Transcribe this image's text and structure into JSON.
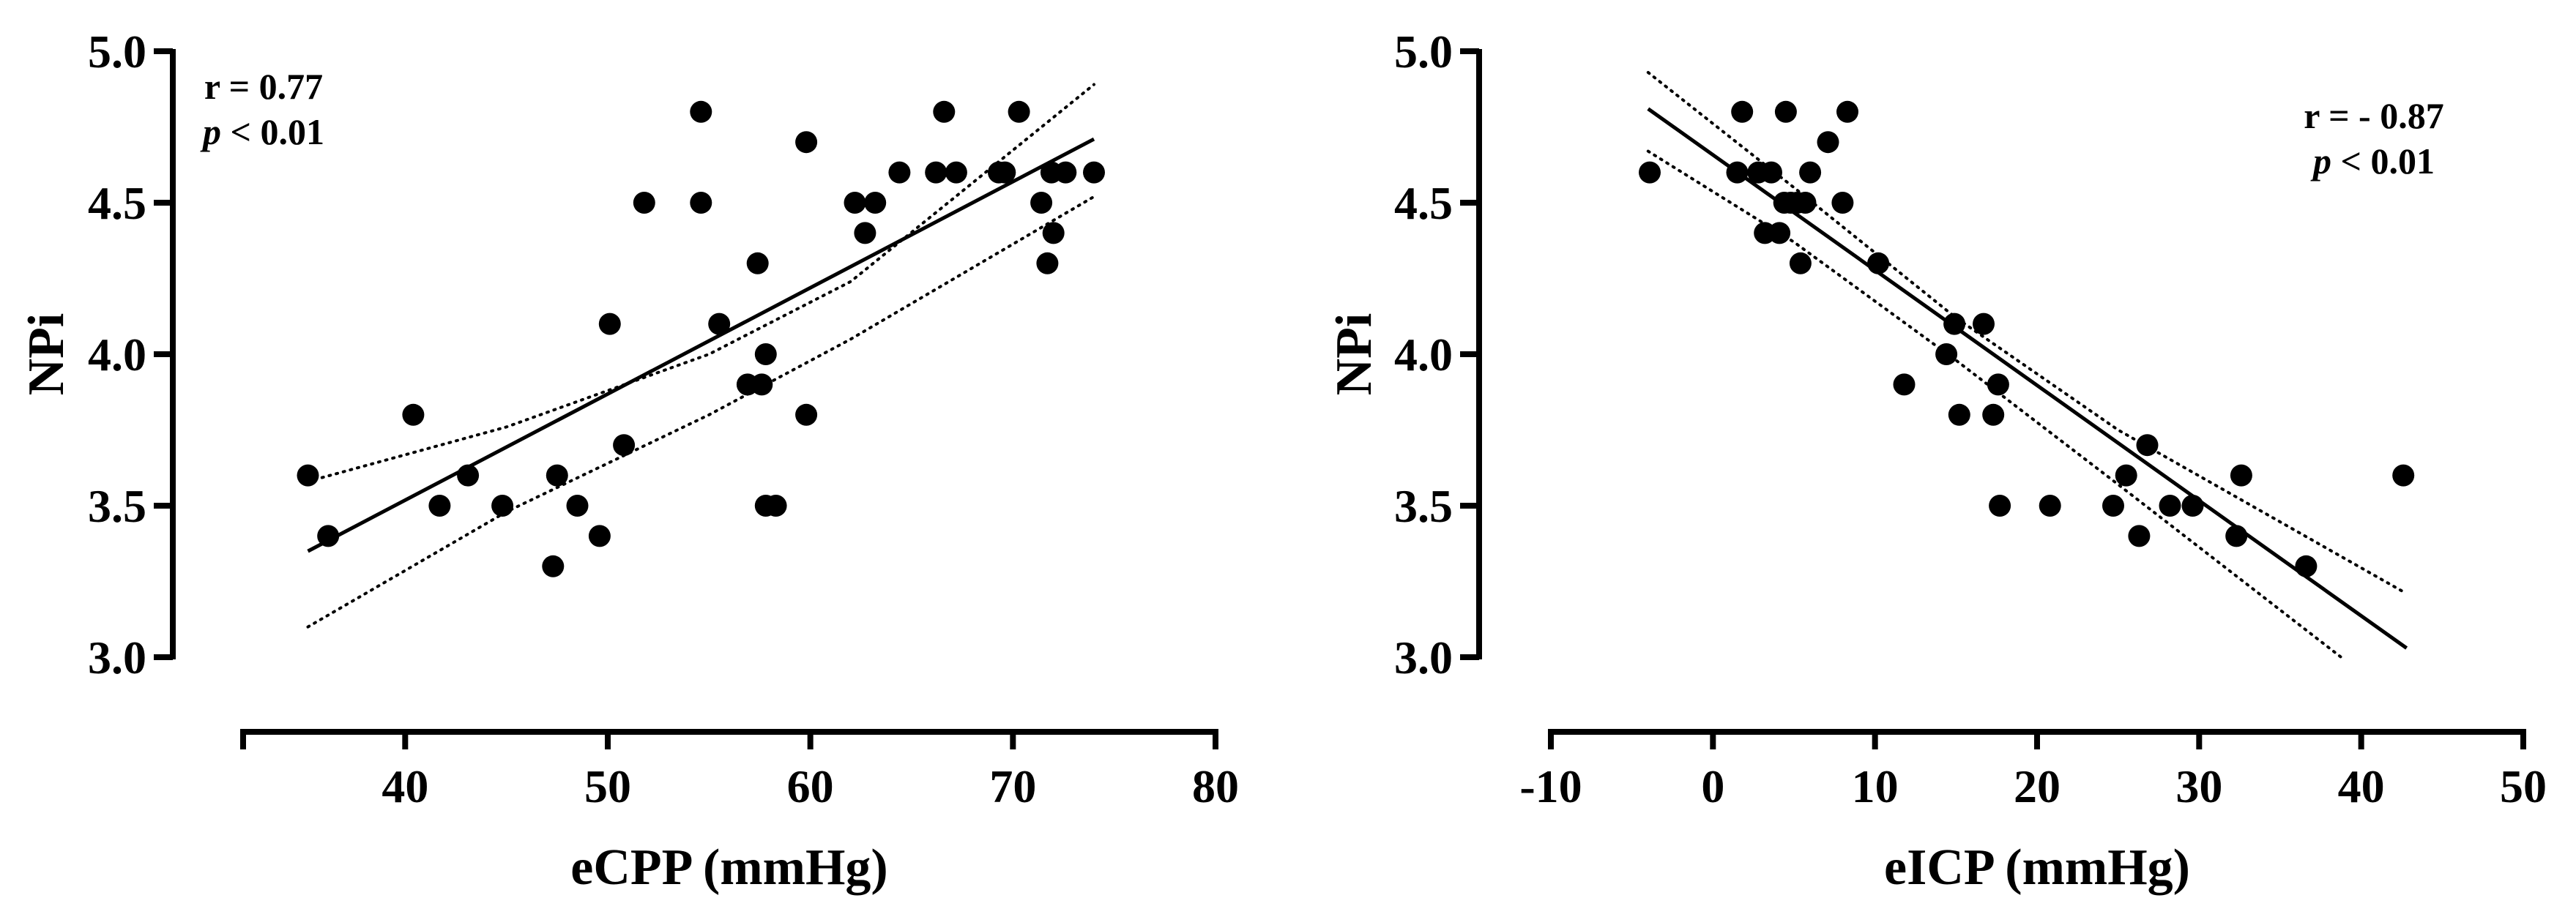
{
  "chart_data": [
    {
      "type": "scatter",
      "title": "",
      "xlabel": "eCPP (mmHg)",
      "ylabel": "NPi",
      "xlim": [
        32,
        80
      ],
      "ylim": [
        3.0,
        5.0
      ],
      "xticks": [
        40,
        50,
        60,
        70,
        80
      ],
      "yticks": [
        3.0,
        3.5,
        4.0,
        4.5,
        5.0
      ],
      "ytick_labels": [
        "3.0",
        "3.5",
        "4.0",
        "4.5",
        "5.0"
      ],
      "xtick_labels": [
        "40",
        "50",
        "60",
        "70",
        "80"
      ],
      "grid": false,
      "legend": "none",
      "annotation": {
        "line1": "r = 0.77",
        "p_symbol": "p",
        "p_rest": " < 0.01",
        "position": "top-left"
      },
      "regression": {
        "x": [
          35.2,
          74.0
        ],
        "y": [
          3.35,
          4.71
        ]
      },
      "ci_upper": {
        "x": [
          35.2,
          45,
          55,
          62,
          74.0
        ],
        "y": [
          3.58,
          3.76,
          4.0,
          4.24,
          4.89
        ]
      },
      "ci_lower": {
        "x": [
          35.2,
          45,
          55,
          62,
          74.0
        ],
        "y": [
          3.1,
          3.48,
          3.8,
          4.05,
          4.52
        ]
      },
      "series": [
        {
          "x": [
            35.2,
            36.2,
            40.4,
            41.7,
            43.1,
            44.8,
            47.3,
            47.5,
            48.5,
            49.6,
            50.1,
            50.8,
            51.8,
            54.6,
            54.6,
            55.5,
            56.9,
            57.4,
            57.6,
            57.8,
            57.8,
            58.3,
            59.8,
            59.8,
            62.2,
            62.7,
            63.2,
            64.4,
            66.2,
            66.6,
            67.2,
            69.3,
            69.6,
            70.3,
            71.4,
            71.7,
            71.9,
            72.0,
            72.6,
            74.0
          ],
          "y": [
            3.6,
            3.4,
            3.8,
            3.5,
            3.6,
            3.5,
            3.3,
            3.6,
            3.5,
            3.4,
            4.1,
            3.7,
            4.5,
            4.8,
            4.5,
            4.1,
            3.9,
            4.3,
            3.9,
            4.0,
            3.5,
            3.5,
            4.7,
            3.8,
            4.5,
            4.4,
            4.5,
            4.6,
            4.6,
            4.8,
            4.6,
            4.6,
            4.6,
            4.8,
            4.5,
            4.3,
            4.6,
            4.4,
            4.6,
            4.6
          ]
        }
      ]
    },
    {
      "type": "scatter",
      "title": "",
      "xlabel": "eICP (mmHg)",
      "ylabel": "NPi",
      "xlim": [
        -10,
        50
      ],
      "ylim": [
        3.0,
        5.0
      ],
      "xticks": [
        -10,
        0,
        10,
        20,
        30,
        40,
        50
      ],
      "yticks": [
        3.0,
        3.5,
        4.0,
        4.5,
        5.0
      ],
      "ytick_labels": [
        "3.0",
        "3.5",
        "4.0",
        "4.5",
        "5.0"
      ],
      "xtick_labels": [
        "-10",
        "0",
        "10",
        "20",
        "30",
        "40",
        "50"
      ],
      "grid": false,
      "legend": "none",
      "annotation": {
        "line1": "r = - 0.87",
        "p_symbol": "p",
        "p_rest": " < 0.01",
        "position": "top-right"
      },
      "regression": {
        "x": [
          -4.0,
          42.8
        ],
        "y": [
          4.81,
          3.03
        ]
      },
      "ci_upper": {
        "x": [
          -4.0,
          5,
          15,
          25,
          42.8
        ],
        "y": [
          4.93,
          4.55,
          4.12,
          3.75,
          3.21
        ]
      },
      "ci_lower": {
        "x": [
          -4.0,
          5,
          15,
          25,
          39.0
        ],
        "y": [
          4.67,
          4.37,
          3.98,
          3.57,
          2.99
        ]
      },
      "series": [
        {
          "x": [
            -3.9,
            1.5,
            1.8,
            2.8,
            3.2,
            3.6,
            4.1,
            4.4,
            4.5,
            4.8,
            5.2,
            5.4,
            5.7,
            6.0,
            7.1,
            8.0,
            8.3,
            10.2,
            11.8,
            14.4,
            14.9,
            15.2,
            16.7,
            17.3,
            17.6,
            17.7,
            20.8,
            24.7,
            25.5,
            26.3,
            26.8,
            28.2,
            29.6,
            32.3,
            32.6,
            36.6,
            42.6
          ],
          "y": [
            4.6,
            4.6,
            4.8,
            4.6,
            4.4,
            4.6,
            4.4,
            4.5,
            4.8,
            4.5,
            4.5,
            4.3,
            4.5,
            4.6,
            4.7,
            4.5,
            4.8,
            4.3,
            3.9,
            4.0,
            4.1,
            3.8,
            4.1,
            3.8,
            3.9,
            3.5,
            3.5,
            3.5,
            3.6,
            3.4,
            3.7,
            3.5,
            3.5,
            3.4,
            3.6,
            3.3,
            3.6
          ]
        }
      ]
    }
  ]
}
